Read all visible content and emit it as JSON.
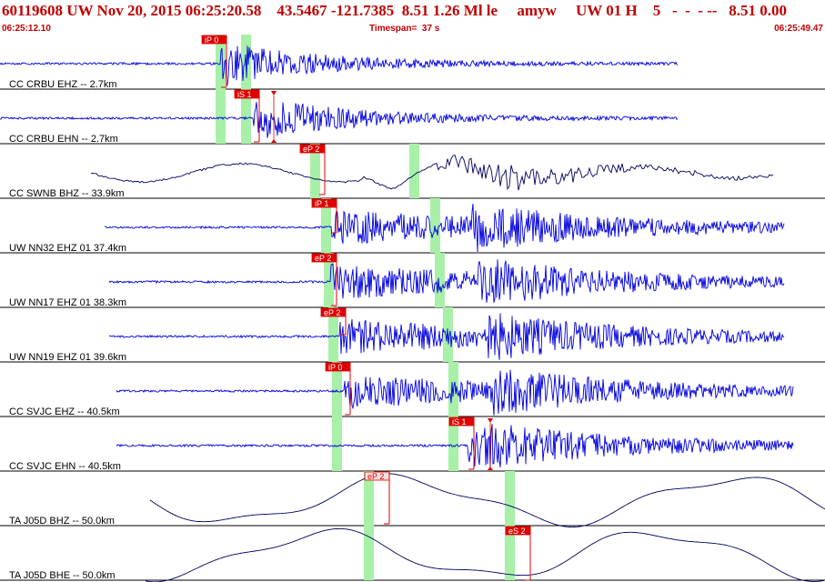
{
  "header": {
    "title": "60119608 UW Nov 20, 2015 06:25:20.58    43.5467 -121.7385  8.51 1.26 Ml le     amyw     UW 01 H    5   -  -  - --   8.51 0.00",
    "start_time": "06:25:12.10",
    "timespan": "Timespan=  37 s",
    "end_time": "06:25:49.47"
  },
  "colors": {
    "header_text": "#c00000",
    "trace_blue": "#0000e0",
    "trace_navy": "#000060",
    "pick_red": "#e00000",
    "pick_light": "#ffe0e0",
    "theoretical_green": "#a8f0a8"
  },
  "traces": [
    {
      "label": "CC CRBU EHZ -- 2.7km",
      "style": "blue",
      "pick": "iP 0",
      "pick_type": "filled",
      "marker": false
    },
    {
      "label": "CC CRBU EHN -- 2.7km",
      "style": "blue",
      "pick": "iS 1",
      "pick_type": "filled",
      "marker": true
    },
    {
      "label": "CC SWNB BHZ -- 33.9km",
      "style": "navy",
      "pick": "eP 2",
      "pick_type": "filled",
      "marker": false
    },
    {
      "label": "UW NN32 EHZ 01 37.4km",
      "style": "blue",
      "pick": "iP 1",
      "pick_type": "filled",
      "marker": false
    },
    {
      "label": "UW NN17 EHZ 01 38.3km",
      "style": "blue",
      "pick": "eP 2",
      "pick_type": "filled",
      "marker": false
    },
    {
      "label": "UW NN19 EHZ 01 39.6km",
      "style": "blue",
      "pick": "eP 2",
      "pick_type": "filled",
      "marker": false
    },
    {
      "label": "CC SVJC EHZ -- 40.5km",
      "style": "blue",
      "pick": "iP 0",
      "pick_type": "filled",
      "marker": false
    },
    {
      "label": "CC SVJC EHN -- 40.5km",
      "style": "blue",
      "pick": "iS 1",
      "pick_type": "filled",
      "marker": true
    },
    {
      "label": "TA J05D BHZ -- 50.0km",
      "style": "navy",
      "pick": "eP 2",
      "pick_type": "light",
      "marker": false
    },
    {
      "label": "TA J05D BHE -- 50.0km",
      "style": "navy",
      "pick": "eS 2",
      "pick_type": "filled",
      "marker": false
    }
  ]
}
